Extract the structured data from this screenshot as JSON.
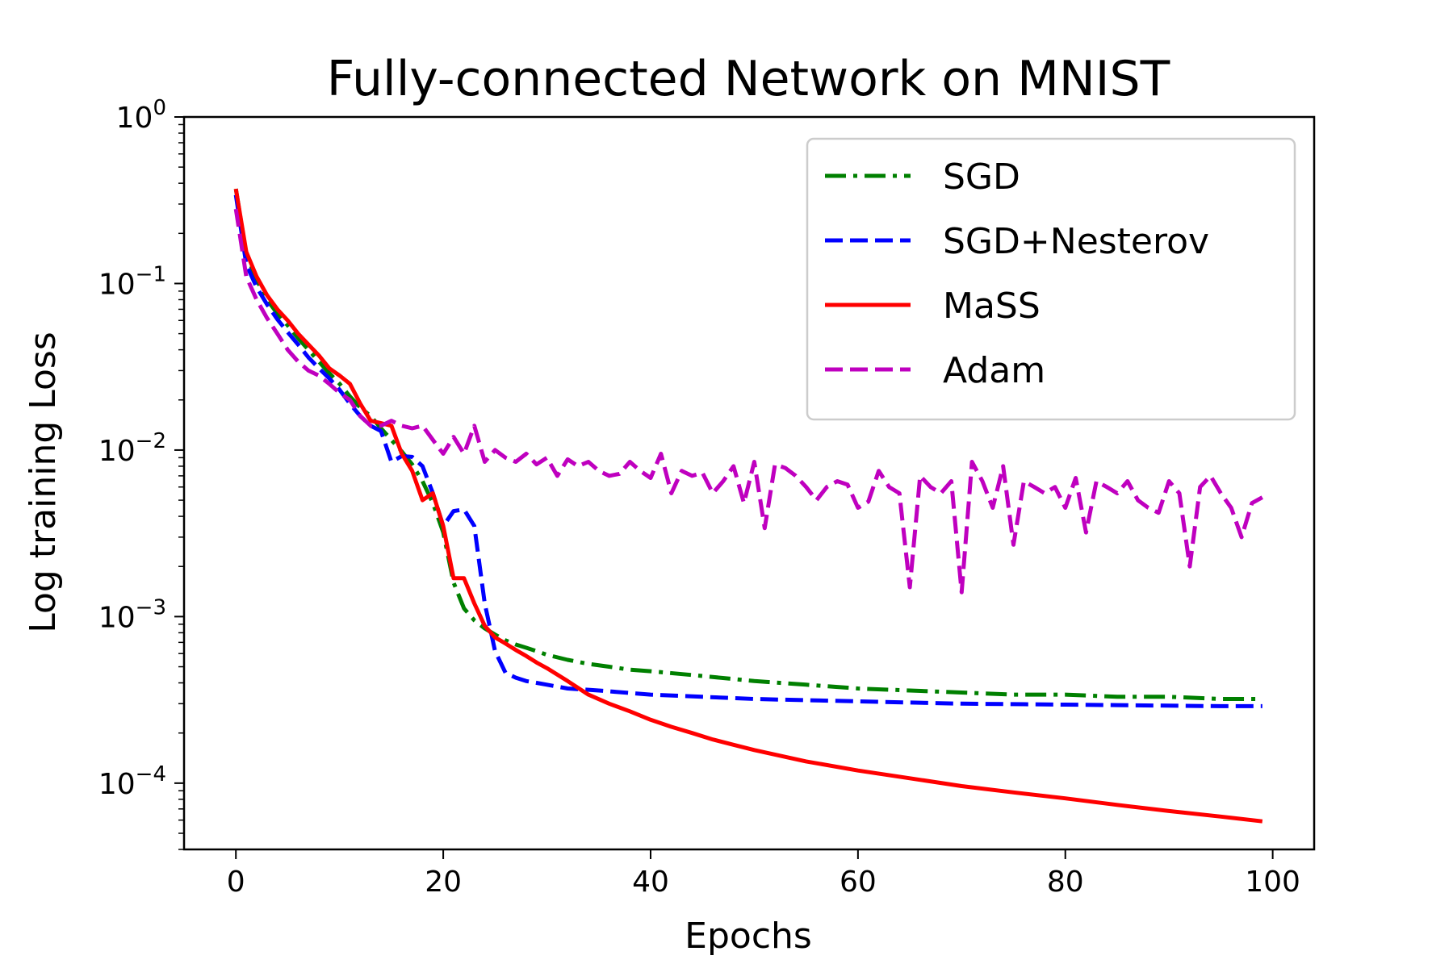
{
  "chart_data": {
    "type": "line",
    "title": "Fully-connected Network on MNIST",
    "xlabel": "Epochs",
    "ylabel": "Log training Loss",
    "xlim": [
      -5,
      104
    ],
    "ylim": [
      4e-05,
      1
    ],
    "yscale": "log",
    "xticks": [
      0,
      20,
      40,
      60,
      80,
      100
    ],
    "yticks": [
      {
        "value": 1,
        "base": "10",
        "exp": "0"
      },
      {
        "value": 0.1,
        "base": "10",
        "exp": "−1"
      },
      {
        "value": 0.01,
        "base": "10",
        "exp": "−2"
      },
      {
        "value": 0.001,
        "base": "10",
        "exp": "−3"
      },
      {
        "value": 0.0001,
        "base": "10",
        "exp": "−4"
      }
    ],
    "legend_position": "top-right",
    "grid": false,
    "series": [
      {
        "name": "SGD",
        "color": "#008000",
        "style": "dashdot",
        "points": [
          [
            0,
            0.37
          ],
          [
            1,
            0.15
          ],
          [
            2,
            0.105
          ],
          [
            3,
            0.08
          ],
          [
            4,
            0.066
          ],
          [
            5,
            0.056
          ],
          [
            6,
            0.047
          ],
          [
            7,
            0.04
          ],
          [
            8,
            0.034
          ],
          [
            9,
            0.029
          ],
          [
            10,
            0.025
          ],
          [
            11,
            0.021
          ],
          [
            12,
            0.018
          ],
          [
            13,
            0.016
          ],
          [
            14,
            0.0135
          ],
          [
            15,
            0.0115
          ],
          [
            16,
            0.0098
          ],
          [
            17,
            0.0082
          ],
          [
            18,
            0.0065
          ],
          [
            19,
            0.0048
          ],
          [
            20,
            0.0032
          ],
          [
            21,
            0.0016
          ],
          [
            22,
            0.00112
          ],
          [
            23,
            0.00095
          ],
          [
            24,
            0.00085
          ],
          [
            25,
            0.00078
          ],
          [
            26,
            0.00072
          ],
          [
            27,
            0.00068
          ],
          [
            28,
            0.00065
          ],
          [
            29,
            0.00062
          ],
          [
            30,
            0.00059
          ],
          [
            32,
            0.00055
          ],
          [
            34,
            0.00052
          ],
          [
            36,
            0.0005
          ],
          [
            38,
            0.00048
          ],
          [
            40,
            0.00047
          ],
          [
            45,
            0.00044
          ],
          [
            50,
            0.00041
          ],
          [
            55,
            0.00039
          ],
          [
            60,
            0.00037
          ],
          [
            65,
            0.00036
          ],
          [
            70,
            0.00035
          ],
          [
            75,
            0.00034
          ],
          [
            80,
            0.00034
          ],
          [
            85,
            0.00033
          ],
          [
            90,
            0.00033
          ],
          [
            95,
            0.00032
          ],
          [
            99,
            0.00032
          ]
        ]
      },
      {
        "name": "SGD+Nesterov",
        "color": "#0000ff",
        "style": "dashed",
        "points": [
          [
            0,
            0.34
          ],
          [
            1,
            0.13
          ],
          [
            2,
            0.095
          ],
          [
            3,
            0.075
          ],
          [
            4,
            0.061
          ],
          [
            5,
            0.051
          ],
          [
            6,
            0.043
          ],
          [
            7,
            0.036
          ],
          [
            8,
            0.031
          ],
          [
            9,
            0.027
          ],
          [
            10,
            0.023
          ],
          [
            11,
            0.019
          ],
          [
            12,
            0.016
          ],
          [
            13,
            0.014
          ],
          [
            14,
            0.013
          ],
          [
            15,
            0.0085
          ],
          [
            16,
            0.0092
          ],
          [
            17,
            0.0091
          ],
          [
            18,
            0.008
          ],
          [
            19,
            0.0055
          ],
          [
            20,
            0.0035
          ],
          [
            21,
            0.0043
          ],
          [
            22,
            0.0044
          ],
          [
            23,
            0.0035
          ],
          [
            24,
            0.0012
          ],
          [
            25,
            0.00062
          ],
          [
            26,
            0.00046
          ],
          [
            27,
            0.00043
          ],
          [
            28,
            0.00041
          ],
          [
            29,
            0.0004
          ],
          [
            30,
            0.00039
          ],
          [
            32,
            0.00037
          ],
          [
            35,
            0.00036
          ],
          [
            40,
            0.00034
          ],
          [
            45,
            0.00033
          ],
          [
            50,
            0.00032
          ],
          [
            55,
            0.000315
          ],
          [
            60,
            0.00031
          ],
          [
            65,
            0.000305
          ],
          [
            70,
            0.0003
          ],
          [
            75,
            0.000298
          ],
          [
            80,
            0.000296
          ],
          [
            85,
            0.000294
          ],
          [
            90,
            0.000292
          ],
          [
            95,
            0.00029
          ],
          [
            99,
            0.00029
          ]
        ]
      },
      {
        "name": "MaSS",
        "color": "#ff0000",
        "style": "solid",
        "points": [
          [
            0,
            0.37
          ],
          [
            1,
            0.155
          ],
          [
            2,
            0.11
          ],
          [
            3,
            0.085
          ],
          [
            4,
            0.07
          ],
          [
            5,
            0.06
          ],
          [
            6,
            0.05
          ],
          [
            7,
            0.043
          ],
          [
            8,
            0.037
          ],
          [
            9,
            0.031
          ],
          [
            10,
            0.028
          ],
          [
            11,
            0.025
          ],
          [
            12,
            0.019
          ],
          [
            13,
            0.015
          ],
          [
            14,
            0.0145
          ],
          [
            15,
            0.014
          ],
          [
            16,
            0.0095
          ],
          [
            17,
            0.0075
          ],
          [
            18,
            0.005
          ],
          [
            19,
            0.0055
          ],
          [
            20,
            0.0035
          ],
          [
            21,
            0.0017
          ],
          [
            22,
            0.0017
          ],
          [
            23,
            0.0012
          ],
          [
            24,
            0.00088
          ],
          [
            25,
            0.00075
          ],
          [
            26,
            0.00069
          ],
          [
            27,
            0.00063
          ],
          [
            28,
            0.00058
          ],
          [
            29,
            0.00053
          ],
          [
            30,
            0.00049
          ],
          [
            32,
            0.00041
          ],
          [
            34,
            0.00034
          ],
          [
            36,
            0.0003
          ],
          [
            38,
            0.00027
          ],
          [
            40,
            0.00024
          ],
          [
            42,
            0.000218
          ],
          [
            44,
            0.0002
          ],
          [
            46,
            0.000183
          ],
          [
            48,
            0.00017
          ],
          [
            50,
            0.000158
          ],
          [
            55,
            0.000135
          ],
          [
            60,
            0.000119
          ],
          [
            65,
            0.000107
          ],
          [
            70,
            9.6e-05
          ],
          [
            75,
            8.8e-05
          ],
          [
            80,
            8.1e-05
          ],
          [
            85,
            7.4e-05
          ],
          [
            90,
            6.8e-05
          ],
          [
            95,
            6.3e-05
          ],
          [
            99,
            5.9e-05
          ]
        ]
      },
      {
        "name": "Adam",
        "color": "#bf00bf",
        "style": "dashed",
        "points": [
          [
            0,
            0.28
          ],
          [
            1,
            0.11
          ],
          [
            2,
            0.08
          ],
          [
            3,
            0.062
          ],
          [
            4,
            0.05
          ],
          [
            5,
            0.04
          ],
          [
            6,
            0.034
          ],
          [
            7,
            0.03
          ],
          [
            8,
            0.028
          ],
          [
            9,
            0.025
          ],
          [
            10,
            0.022
          ],
          [
            11,
            0.02
          ],
          [
            12,
            0.016
          ],
          [
            13,
            0.014
          ],
          [
            14,
            0.014
          ],
          [
            15,
            0.015
          ],
          [
            16,
            0.014
          ],
          [
            17,
            0.0135
          ],
          [
            18,
            0.014
          ],
          [
            19,
            0.0115
          ],
          [
            20,
            0.0095
          ],
          [
            21,
            0.012
          ],
          [
            22,
            0.0095
          ],
          [
            23,
            0.014
          ],
          [
            24,
            0.0085
          ],
          [
            25,
            0.01
          ],
          [
            26,
            0.009
          ],
          [
            27,
            0.0085
          ],
          [
            28,
            0.0095
          ],
          [
            29,
            0.0082
          ],
          [
            30,
            0.009
          ],
          [
            31,
            0.007
          ],
          [
            32,
            0.0088
          ],
          [
            33,
            0.008
          ],
          [
            34,
            0.0085
          ],
          [
            35,
            0.0075
          ],
          [
            36,
            0.007
          ],
          [
            37,
            0.0072
          ],
          [
            38,
            0.0085
          ],
          [
            39,
            0.0075
          ],
          [
            40,
            0.0068
          ],
          [
            41,
            0.0095
          ],
          [
            42,
            0.0055
          ],
          [
            43,
            0.0075
          ],
          [
            44,
            0.007
          ],
          [
            45,
            0.0073
          ],
          [
            46,
            0.0055
          ],
          [
            47,
            0.0065
          ],
          [
            48,
            0.008
          ],
          [
            49,
            0.0048
          ],
          [
            50,
            0.0085
          ],
          [
            51,
            0.0034
          ],
          [
            52,
            0.0082
          ],
          [
            53,
            0.0078
          ],
          [
            54,
            0.007
          ],
          [
            55,
            0.006
          ],
          [
            56,
            0.005
          ],
          [
            57,
            0.006
          ],
          [
            58,
            0.0065
          ],
          [
            59,
            0.0062
          ],
          [
            60,
            0.0045
          ],
          [
            61,
            0.0049
          ],
          [
            62,
            0.0075
          ],
          [
            63,
            0.006
          ],
          [
            64,
            0.0055
          ],
          [
            65,
            0.0015
          ],
          [
            66,
            0.007
          ],
          [
            67,
            0.006
          ],
          [
            68,
            0.0055
          ],
          [
            69,
            0.0065
          ],
          [
            70,
            0.0014
          ],
          [
            71,
            0.0085
          ],
          [
            72,
            0.0065
          ],
          [
            73,
            0.0045
          ],
          [
            74,
            0.008
          ],
          [
            75,
            0.0027
          ],
          [
            76,
            0.0065
          ],
          [
            77,
            0.006
          ],
          [
            78,
            0.0055
          ],
          [
            79,
            0.006
          ],
          [
            80,
            0.0045
          ],
          [
            81,
            0.0068
          ],
          [
            82,
            0.0032
          ],
          [
            83,
            0.0065
          ],
          [
            84,
            0.006
          ],
          [
            85,
            0.0055
          ],
          [
            86,
            0.0065
          ],
          [
            87,
            0.005
          ],
          [
            88,
            0.0045
          ],
          [
            89,
            0.0042
          ],
          [
            90,
            0.0065
          ],
          [
            91,
            0.0055
          ],
          [
            92,
            0.002
          ],
          [
            93,
            0.006
          ],
          [
            94,
            0.007
          ],
          [
            95,
            0.0055
          ],
          [
            96,
            0.0045
          ],
          [
            97,
            0.003
          ],
          [
            98,
            0.0048
          ],
          [
            99,
            0.0052
          ]
        ]
      }
    ]
  }
}
